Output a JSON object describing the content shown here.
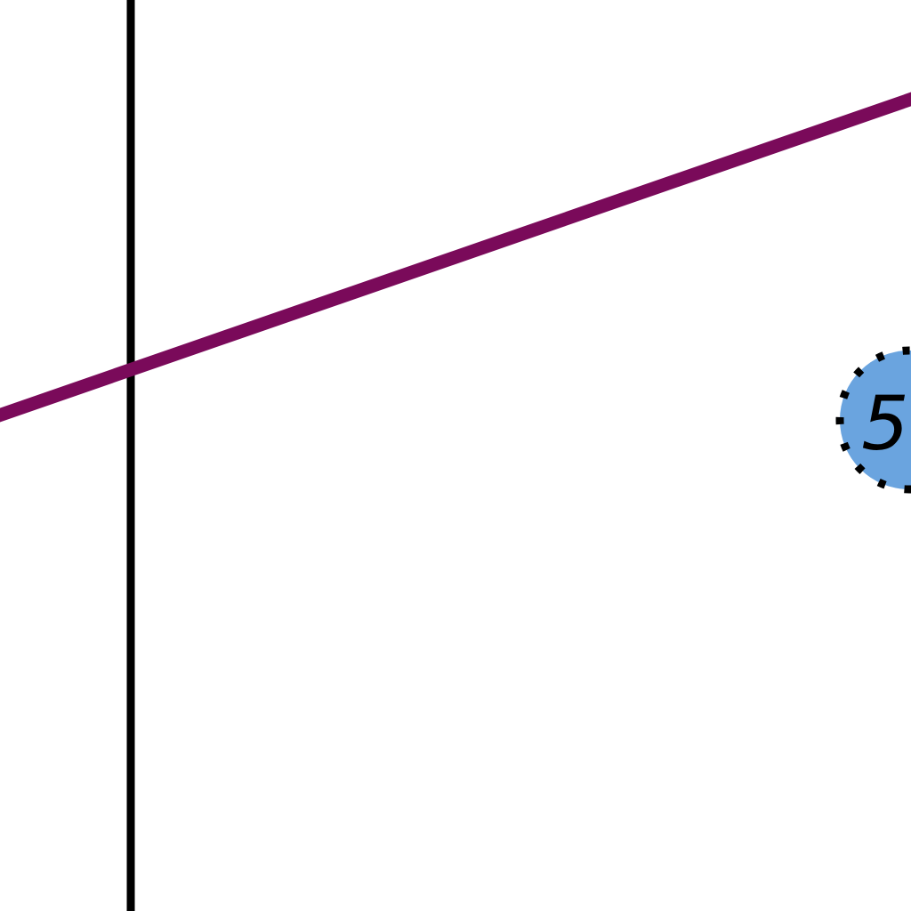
{
  "colors": {
    "background": "#ffffff",
    "vertical_line": "#000000",
    "diagonal_line": "#7a0a5a",
    "node_fill": "#6aa4df",
    "node_border": "#000000",
    "node_text": "#000000"
  },
  "node": {
    "label": "5"
  }
}
